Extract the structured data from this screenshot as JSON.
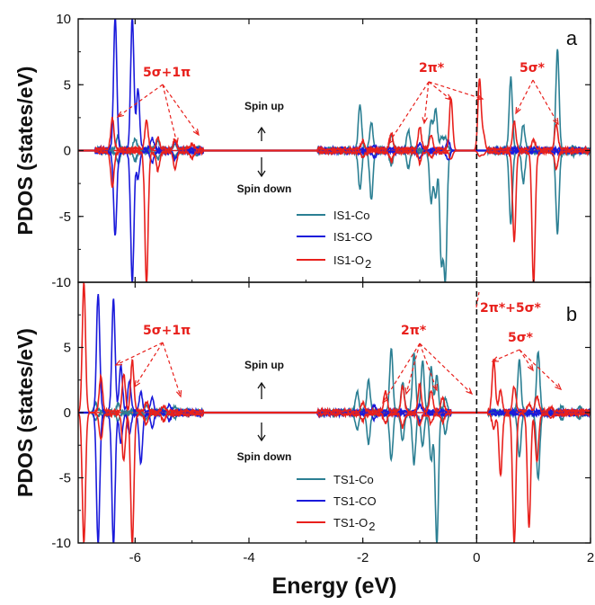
{
  "chart_data": {
    "shared": {
      "xlabel": "Energy (eV)",
      "ylabel": "PDOS (states/eV)",
      "xlim": [
        -7,
        2
      ],
      "ylim": [
        -10,
        10
      ],
      "xticks": [
        -6,
        -4,
        -2,
        0,
        2
      ],
      "yticks": [
        -10,
        -5,
        0,
        5,
        10
      ],
      "fermi_level": 0,
      "colors": {
        "Co": "#2b7f93",
        "CO": "#1a1adb",
        "O2": "#e8201c"
      }
    },
    "panels": [
      {
        "type": "line",
        "letter": "a",
        "legend": [
          "IS1-Co",
          "IS1-CO",
          "IS1-O",
          "2"
        ],
        "spin_up": "Spin up",
        "spin_down": "Spin down",
        "annotations": [
          "5σ+1π",
          "2π*",
          "5σ*"
        ],
        "series": [
          {
            "name": "IS1-Co",
            "key": "Co",
            "peaks": [
              [
                -6.3,
                1.0,
                -0.8
              ],
              [
                -6.0,
                0.8,
                -0.6
              ],
              [
                -5.6,
                0.6,
                -0.5
              ],
              [
                -5.3,
                0.4,
                -0.3
              ],
              [
                -4.9,
                0.2,
                -0.2
              ],
              [
                -2.05,
                3.4,
                -2.8
              ],
              [
                -1.85,
                2.0,
                -3.6
              ],
              [
                -1.5,
                1.0,
                -1.0
              ],
              [
                -1.2,
                1.4,
                -1.2
              ],
              [
                -0.8,
                2.2,
                -3.8
              ],
              [
                -0.72,
                3.1,
                -3.4
              ],
              [
                -0.62,
                0.8,
                -8.3
              ],
              [
                -0.55,
                0.9,
                -9.5
              ],
              [
                0.6,
                5.4,
                -5.4
              ],
              [
                0.82,
                1.8,
                -2.3
              ],
              [
                1.42,
                7.6,
                -6.1
              ],
              [
                1.7,
                0.2,
                -0.2
              ]
            ]
          },
          {
            "name": "IS1-CO",
            "key": "CO",
            "peaks": [
              [
                -6.35,
                10,
                -6.3
              ],
              [
                -6.05,
                10,
                -10
              ],
              [
                -5.95,
                4.5,
                -2.0
              ],
              [
                -5.7,
                0.8,
                -0.8
              ],
              [
                -5.3,
                0.6,
                -0.5
              ],
              [
                -1.8,
                0.3,
                -0.4
              ],
              [
                -1.0,
                0.4,
                -0.5
              ],
              [
                -0.5,
                0.6,
                -0.6
              ]
            ]
          },
          {
            "name": "IS1-O",
            "key": "O2",
            "peaks": [
              [
                -6.4,
                2.3,
                -2.7
              ],
              [
                -5.8,
                2.2,
                -10
              ],
              [
                -5.6,
                0.9,
                -1.4
              ],
              [
                -5.3,
                0.7,
                -1.3
              ],
              [
                -5.0,
                0.4,
                -0.4
              ],
              [
                -2.0,
                0.6,
                -0.4
              ],
              [
                -1.5,
                1.2,
                -0.6
              ],
              [
                -1.0,
                1.7,
                -0.8
              ],
              [
                -0.8,
                1.1,
                -0.4
              ],
              [
                -0.45,
                3.9,
                -0.6
              ],
              [
                0.05,
                5.4,
                -0.4
              ],
              [
                0.12,
                1.2,
                -0.3
              ],
              [
                0.66,
                2.1,
                -6.8
              ],
              [
                1.0,
                0.7,
                -10
              ],
              [
                1.4,
                1.9,
                -1.3
              ]
            ]
          }
        ]
      },
      {
        "type": "line",
        "letter": "b",
        "legend": [
          "TS1-Co",
          "TS1-CO",
          "TS1-O",
          "2"
        ],
        "spin_up": "Spin up",
        "spin_down": "Spin down",
        "annotations": [
          "5σ+1π",
          "2π*",
          "2π*+5σ*",
          "5σ*"
        ],
        "series": [
          {
            "name": "TS1-Co",
            "key": "Co",
            "peaks": [
              [
                -6.7,
                0.6,
                -0.5
              ],
              [
                -6.3,
                0.5,
                -0.5
              ],
              [
                -5.8,
                0.5,
                -0.4
              ],
              [
                -5.3,
                0.3,
                -0.3
              ],
              [
                -2.1,
                1.5,
                -1.2
              ],
              [
                -1.9,
                2.4,
                -2.2
              ],
              [
                -1.5,
                4.8,
                -3.5
              ],
              [
                -1.3,
                2.2,
                -2.0
              ],
              [
                -1.1,
                4.5,
                -3.8
              ],
              [
                -0.95,
                3.8,
                -2.5
              ],
              [
                -0.8,
                3.4,
                -3.6
              ],
              [
                -0.7,
                2.7,
                -10
              ],
              [
                -0.55,
                1.0,
                -1.5
              ],
              [
                0.75,
                3.9,
                -3.3
              ],
              [
                1.08,
                4.6,
                -5.0
              ],
              [
                1.5,
                0.4,
                -0.4
              ],
              [
                1.8,
                0.3,
                -0.3
              ]
            ]
          },
          {
            "name": "TS1-CO",
            "key": "CO",
            "peaks": [
              [
                -6.65,
                9.0,
                -10
              ],
              [
                -6.38,
                8.6,
                -10
              ],
              [
                -6.25,
                3.5,
                -2.2
              ],
              [
                -6.1,
                2.3,
                -1.5
              ],
              [
                -5.9,
                1.4,
                -3.8
              ],
              [
                -5.7,
                1.0,
                -1.0
              ],
              [
                -5.4,
                0.5,
                -0.5
              ],
              [
                -1.8,
                0.4,
                -0.4
              ],
              [
                -1.0,
                0.5,
                -0.6
              ]
            ]
          },
          {
            "name": "TS1-O",
            "key": "O2",
            "peaks": [
              [
                -6.9,
                10,
                -10
              ],
              [
                -6.6,
                2.7,
                -2.0
              ],
              [
                -6.2,
                2.8,
                -3.6
              ],
              [
                -6.05,
                3.9,
                -10
              ],
              [
                -5.8,
                0.7,
                -0.8
              ],
              [
                -5.5,
                0.4,
                -0.5
              ],
              [
                -2.0,
                0.6,
                -0.5
              ],
              [
                -1.6,
                1.5,
                -0.7
              ],
              [
                -1.3,
                1.9,
                -1.0
              ],
              [
                -1.0,
                2.1,
                -0.9
              ],
              [
                -0.8,
                1.6,
                -0.7
              ],
              [
                -0.6,
                1.0,
                -0.6
              ],
              [
                0.3,
                3.9,
                -1.1
              ],
              [
                0.42,
                1.6,
                -4.7
              ],
              [
                0.66,
                1.9,
                -10
              ],
              [
                0.92,
                0.5,
                -8.8
              ],
              [
                1.06,
                1.1,
                -3.7
              ],
              [
                1.3,
                0.3,
                -0.3
              ]
            ]
          }
        ]
      }
    ]
  }
}
